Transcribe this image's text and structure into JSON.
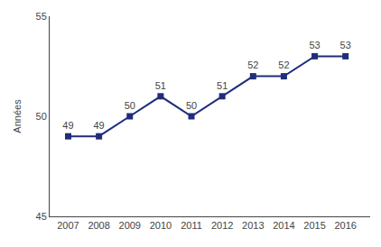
{
  "chart_data": {
    "type": "line",
    "ylabel": "Années",
    "x": [
      2007,
      2008,
      2009,
      2010,
      2011,
      2012,
      2013,
      2014,
      2015,
      2016
    ],
    "values": [
      49,
      49,
      50,
      51,
      50,
      51,
      52,
      52,
      53,
      53
    ],
    "color": "#1f2d7a",
    "marker": "square",
    "line_style": "solid",
    "xlim": [
      2006.4,
      2016.8
    ],
    "xticks": [
      2007,
      2008,
      2009,
      2010,
      2011,
      2012,
      2013,
      2014,
      2015,
      2016
    ],
    "ylim": [
      45,
      55
    ],
    "yticks": [
      45,
      50,
      55
    ],
    "data_labels": true,
    "grid": false
  }
}
